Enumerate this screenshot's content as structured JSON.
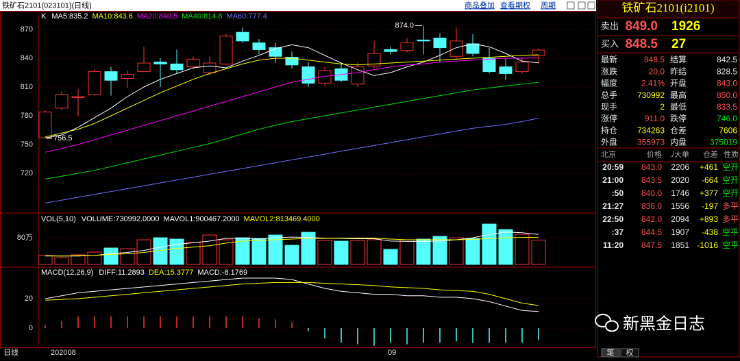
{
  "header": {
    "title": "铁矿石2101(023101)(日线)",
    "menu": [
      "商品叠加",
      "查看期权",
      "周期"
    ]
  },
  "chart_data": [
    {
      "type": "candlestick",
      "label": "K",
      "categories": [
        "202008",
        null,
        null,
        null,
        null,
        null,
        null,
        null,
        null,
        null,
        null,
        null,
        null,
        null,
        null,
        null,
        null,
        null,
        null,
        null,
        null,
        "09",
        null,
        null,
        null,
        null,
        null,
        null,
        null,
        null,
        null
      ],
      "open": [
        757,
        788,
        799,
        802,
        826,
        819,
        826,
        836,
        834,
        831,
        825,
        834,
        867,
        856,
        851,
        841,
        831,
        814,
        829,
        813,
        832,
        849,
        848,
        859,
        861,
        842,
        855,
        840,
        831,
        826,
        843
      ],
      "high": [
        786,
        806,
        808,
        829,
        831,
        827,
        852,
        840,
        849,
        842,
        842,
        865,
        872,
        860,
        856,
        847,
        836,
        831,
        835,
        836,
        858,
        852,
        861,
        874,
        866,
        872,
        865,
        851,
        840,
        841,
        850
      ],
      "low": [
        756.5,
        786,
        779,
        801,
        801,
        809,
        826,
        810,
        824,
        829,
        822,
        833,
        856,
        844,
        835,
        829,
        810,
        811,
        815,
        810,
        829,
        844,
        846,
        844,
        836,
        839,
        842,
        824,
        817,
        824,
        833.5
      ],
      "close": [
        784,
        802,
        800,
        826,
        817,
        823,
        835,
        834,
        828,
        839,
        835,
        863,
        858,
        849,
        842,
        833,
        814,
        827,
        817,
        831,
        845,
        847,
        856,
        858,
        851,
        858,
        845,
        826,
        824,
        836,
        848.5
      ],
      "up_color": "#ff3232",
      "down_color": "#54fcfc",
      "series": [
        {
          "name": "MA5:835.2",
          "color": "#ffffff",
          "values": [
            757,
            760,
            768,
            778,
            788,
            800,
            810,
            818,
            824,
            830,
            832,
            830,
            837,
            843,
            850,
            854,
            851,
            843,
            835,
            828,
            822,
            825,
            831,
            836,
            843,
            851,
            855,
            852,
            845,
            837,
            835.2
          ]
        },
        {
          "name": "MA10:843.6",
          "color": "#ffff00",
          "values": [
            758,
            762,
            766,
            772,
            780,
            788,
            796,
            804,
            811,
            818,
            824,
            829,
            834,
            838,
            840,
            840,
            838,
            836,
            834,
            833,
            834,
            835,
            836,
            837,
            838,
            839,
            840,
            841,
            842,
            843,
            843.6
          ]
        },
        {
          "name": "MA20:840.5",
          "color": "#ff00ff",
          "values": [
            742,
            746,
            750,
            755,
            760,
            765,
            770,
            775,
            780,
            785,
            790,
            795,
            800,
            805,
            810,
            815,
            818,
            821,
            823,
            825,
            828,
            831,
            833,
            834,
            836,
            837,
            838,
            839,
            840,
            840,
            840.5
          ]
        },
        {
          "name": "MA40:814.8",
          "color": "#00e600",
          "values": [
            714,
            717,
            720,
            723,
            727,
            731,
            735,
            739,
            743,
            747,
            751,
            756,
            761,
            766,
            770,
            774,
            777,
            780,
            783,
            786,
            789,
            792,
            795,
            798,
            801,
            804,
            807,
            809,
            811,
            813,
            814.8
          ]
        },
        {
          "name": "MA60:777.4",
          "color": "#7070ff",
          "values": [
            689,
            692,
            695,
            698,
            701,
            704,
            707,
            710,
            713,
            716,
            719,
            722,
            725,
            728,
            731,
            734,
            737,
            740,
            743,
            746,
            749,
            752,
            755,
            758,
            761,
            764,
            767,
            769,
            771,
            774,
            777.4
          ]
        }
      ],
      "annotations": [
        {
          "value": 874,
          "label": "874.0"
        },
        {
          "value": 756.5,
          "label": "756.5"
        }
      ],
      "ylim": [
        680,
        888
      ],
      "yticks": [
        720,
        750,
        780,
        810,
        840,
        870
      ],
      "grid": true
    },
    {
      "type": "volume",
      "label": "VOL(5,10)",
      "series": [
        {
          "name": "VOLUME:730992.0000",
          "color": "#ffffff",
          "values": [
            267000,
            205000,
            287000,
            369000,
            492000,
            472000,
            738000,
            800000,
            759000,
            656000,
            882000,
            738000,
            800000,
            779000,
            882000,
            574000,
            964000,
            718000,
            697000,
            718000,
            738000,
            451000,
            738000,
            759000,
            841000,
            800000,
            779000,
            1210000,
            1046000,
            903000,
            730992
          ]
        },
        {
          "name": "MAVOL1:900467.2000",
          "color": "#ffffff",
          "line": true,
          "values": [
            260000,
            250000,
            250000,
            270000,
            320000,
            360000,
            420000,
            520000,
            600000,
            650000,
            700000,
            780000,
            780000,
            760000,
            800000,
            820000,
            810000,
            790000,
            780000,
            770000,
            770000,
            700000,
            690000,
            690000,
            700000,
            740000,
            800000,
            900000,
            970000,
            950000,
            900467.2
          ]
        },
        {
          "name": "MAVOL2:813469.4000",
          "color": "#ffff00",
          "line": true,
          "values": [
            250000,
            250000,
            260000,
            270000,
            300000,
            320000,
            360000,
            420000,
            480000,
            520000,
            560000,
            640000,
            700000,
            720000,
            740000,
            760000,
            780000,
            780000,
            790000,
            790000,
            790000,
            760000,
            740000,
            740000,
            740000,
            740000,
            750000,
            780000,
            800000,
            810000,
            813469.4
          ]
        }
      ],
      "ylim": [
        0,
        1500000
      ],
      "yticks": [
        {
          "value": 800000,
          "label": "80万"
        }
      ],
      "grid": true
    },
    {
      "type": "macd",
      "label": "MACD(12,26,9)",
      "up_color": "#ff3232",
      "down_color": "#54fcfc",
      "series": [
        {
          "name": "DIFF:11.2893",
          "color": "#ffffff",
          "line": true,
          "values": [
            20,
            22,
            24,
            25,
            26,
            27,
            28,
            29,
            30,
            31,
            32,
            33,
            34,
            34,
            34,
            33,
            30,
            27,
            25,
            24,
            23,
            23,
            22,
            22,
            21,
            21,
            20,
            18,
            15,
            12,
            11.2893
          ]
        },
        {
          "name": "DEA:15.3777",
          "color": "#ffff00",
          "line": true,
          "values": [
            19,
            19.5,
            20,
            21,
            22,
            23,
            24,
            25,
            26,
            27,
            28,
            29,
            30,
            30.5,
            31,
            31,
            31,
            30.5,
            30,
            29.5,
            29,
            28,
            27.5,
            27,
            26,
            25.5,
            25,
            23,
            20,
            17,
            15.3777
          ]
        },
        {
          "name": "MACD:-8.1769",
          "color": "#ffffff",
          "values": [
            2,
            5,
            8,
            8,
            8,
            8,
            8,
            8,
            8,
            8,
            8,
            8,
            8,
            7,
            6,
            4,
            -2,
            -7,
            -10,
            -11,
            -12,
            -10,
            -11,
            -10,
            -10,
            -9,
            -10,
            -10,
            -10,
            -10,
            -8.1769
          ]
        }
      ],
      "ylim": [
        -13.5,
        40.5
      ],
      "yticks": [
        0,
        20
      ],
      "grid": true
    }
  ],
  "quote": {
    "title": "铁矿石2101(i2101)",
    "ask": {
      "label": "卖出",
      "price": "849.0",
      "volume": "1926"
    },
    "bid": {
      "label": "买入",
      "price": "848.5",
      "volume": "27"
    },
    "stats": [
      [
        "最新",
        "848.5",
        "结算",
        "842.5"
      ],
      [
        "涨跌",
        "20.0",
        "昨结",
        "828.5"
      ],
      [
        "幅度",
        "2.41%",
        "开盘",
        "843.0"
      ],
      [
        "总手",
        "730992",
        "最高",
        "850.0"
      ],
      [
        "现手",
        "2",
        "最低",
        "833.5"
      ],
      [
        "涨停",
        "911.0",
        "跌停",
        "746.0"
      ],
      [
        "持仓",
        "734263",
        "仓差",
        "7606"
      ],
      [
        "外盘",
        "355973",
        "内盘",
        "375019"
      ]
    ],
    "ticks_header": [
      "北京",
      "价格",
      "./大单",
      "仓差",
      "性质"
    ],
    "ticks": [
      [
        "20:59",
        "843.0",
        "2206",
        "+461",
        "空开"
      ],
      [
        "21:00",
        "843.5",
        "2020",
        "-664",
        "空开"
      ],
      [
        ":50",
        "840.0",
        "1746",
        "+377",
        "空开"
      ],
      [
        "21:27",
        "836.0",
        "1556",
        "-197",
        "多平"
      ],
      [
        "22:50",
        "842.0",
        "2094",
        "+893",
        "多平"
      ],
      [
        ":37",
        "844.5",
        "1907",
        "-438",
        "空平"
      ],
      [
        "11:20",
        "847.5",
        "1851",
        "-1016",
        "空平"
      ]
    ]
  },
  "footer": {
    "period": "日线",
    "tabs": [
      "笔",
      "权"
    ]
  },
  "watermark": "新黑金日志"
}
